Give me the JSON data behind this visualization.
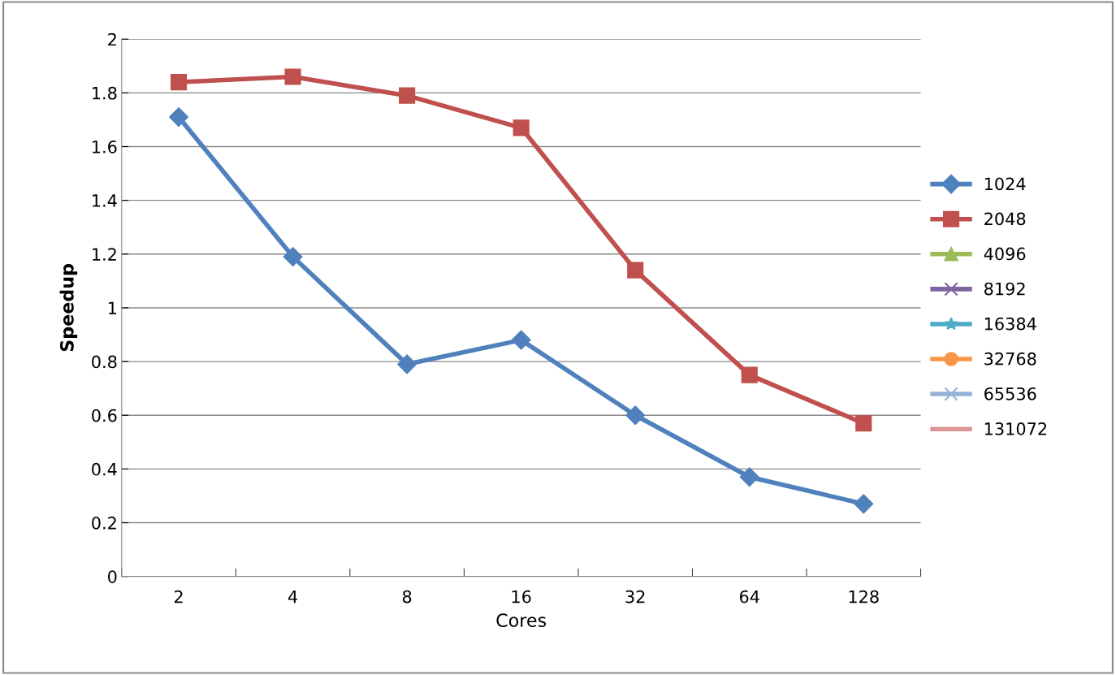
{
  "chart_data": {
    "type": "line",
    "xlabel": "Cores",
    "ylabel": "Speedup",
    "categories": [
      "2",
      "4",
      "8",
      "16",
      "32",
      "64",
      "128"
    ],
    "series": [
      {
        "name": "1024",
        "color": "#4f81bd",
        "marker": "diamond",
        "values": [
          1.71,
          1.19,
          0.79,
          0.88,
          0.6,
          0.37,
          0.27
        ]
      },
      {
        "name": "2048",
        "color": "#c0504d",
        "marker": "square",
        "values": [
          1.84,
          1.86,
          1.79,
          1.67,
          1.14,
          0.75,
          0.57
        ]
      },
      {
        "name": "4096",
        "color": "#9bbb59",
        "marker": "triangle",
        "values": [
          null,
          null,
          null,
          null,
          null,
          null,
          null
        ]
      },
      {
        "name": "8192",
        "color": "#8064a2",
        "marker": "cross",
        "values": [
          null,
          null,
          null,
          null,
          null,
          null,
          null
        ]
      },
      {
        "name": "16384",
        "color": "#4bacc6",
        "marker": "star",
        "values": [
          null,
          null,
          null,
          null,
          null,
          null,
          null
        ]
      },
      {
        "name": "32768",
        "color": "#f79646",
        "marker": "circle",
        "values": [
          null,
          null,
          null,
          null,
          null,
          null,
          null
        ]
      },
      {
        "name": "65536",
        "color": "#95b3d7",
        "marker": "cross",
        "values": [
          null,
          null,
          null,
          null,
          null,
          null,
          null
        ]
      },
      {
        "name": "131072",
        "color": "#d99694",
        "marker": "none",
        "values": [
          null,
          null,
          null,
          null,
          null,
          null,
          null
        ]
      }
    ],
    "ylim": [
      0,
      2
    ],
    "yticks": [
      0,
      0.2,
      0.4,
      0.6,
      0.8,
      1,
      1.2,
      1.4,
      1.6,
      1.8,
      2
    ],
    "grid": "y",
    "legend": "right"
  }
}
